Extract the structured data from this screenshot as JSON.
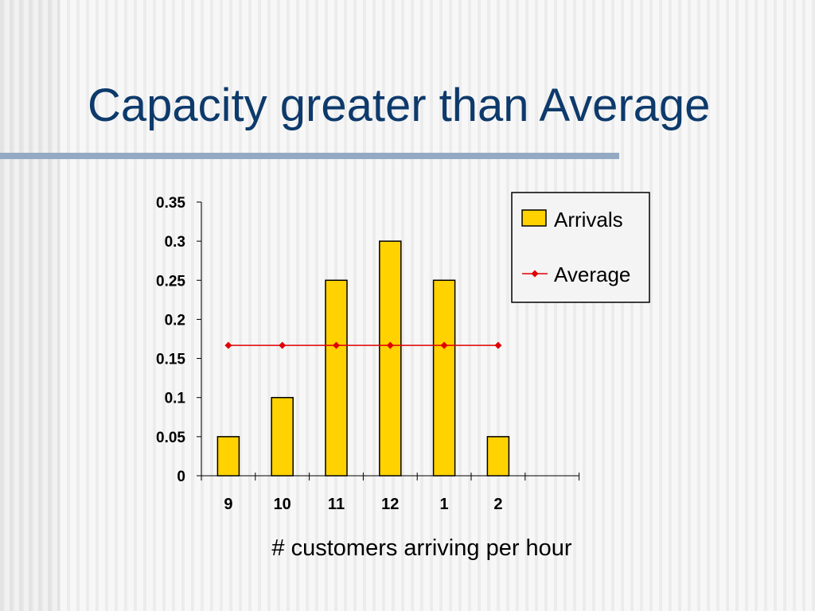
{
  "slide": {
    "title": "Capacity greater than Average"
  },
  "colors": {
    "title": "#0d3a6b",
    "title_rule": "#94aac4",
    "bar_fill": "#ffd200",
    "bar_stroke": "#000000",
    "average_line": "#e00000"
  },
  "chart_data": {
    "type": "bar",
    "categories": [
      "9",
      "10",
      "11",
      "12",
      "1",
      "2"
    ],
    "series": [
      {
        "name": "Arrivals",
        "type": "bar",
        "values": [
          0.05,
          0.1,
          0.25,
          0.3,
          0.25,
          0.05
        ]
      },
      {
        "name": "Average",
        "type": "line",
        "values": [
          0.1667,
          0.1667,
          0.1667,
          0.1667,
          0.1667,
          0.1667
        ]
      }
    ],
    "xlabel": "# customers arriving per hour",
    "ylabel": "",
    "ylim": [
      0,
      0.35
    ],
    "yticks": [
      "0",
      "0.05",
      "0.1",
      "0.15",
      "0.2",
      "0.25",
      "0.3",
      "0.35"
    ],
    "grid": false,
    "legend": {
      "position": "top-right",
      "items": [
        "Arrivals",
        "Average"
      ]
    }
  }
}
